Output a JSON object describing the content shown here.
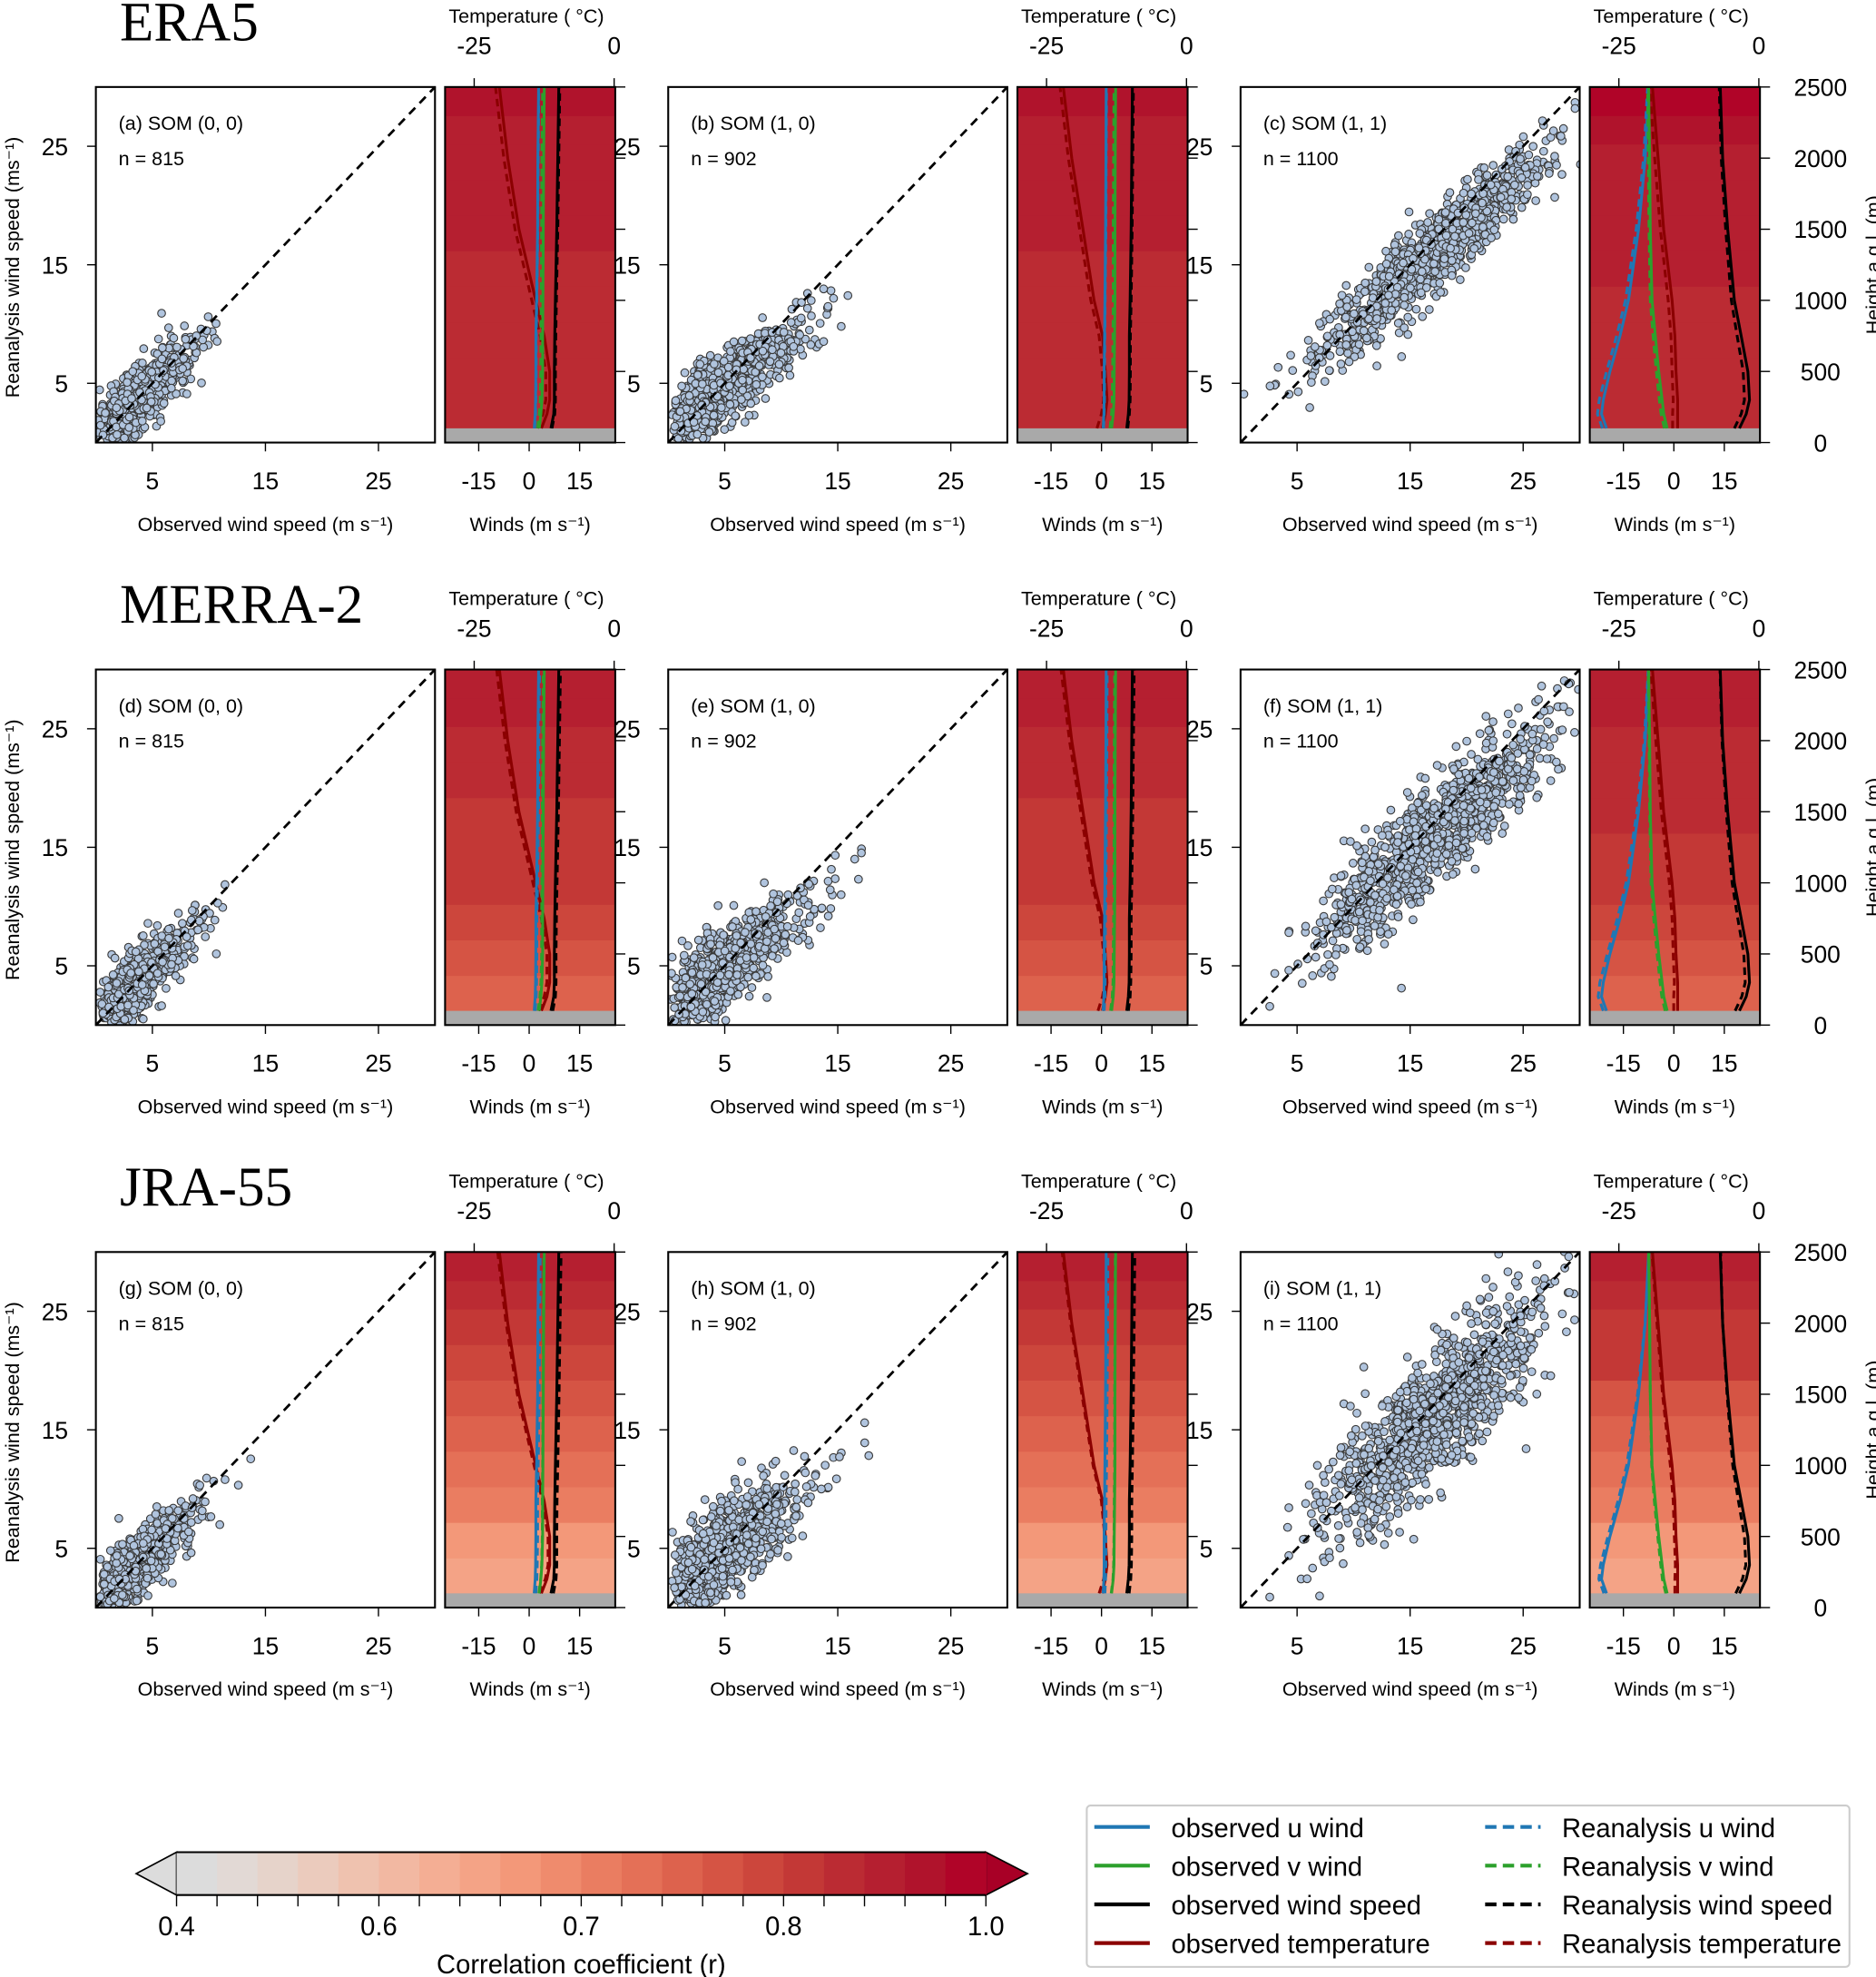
{
  "chart_data": {
    "type": "scatter",
    "rows": [
      {
        "reanalysis": "ERA5"
      },
      {
        "reanalysis": "MERRA-2"
      },
      {
        "reanalysis": "JRA-55"
      }
    ],
    "scatter_axes": {
      "xlabel": "Observed wind speed (m s⁻¹)",
      "ylabel": "Reanalysis wind speed (ms⁻¹)",
      "xlim": [
        0,
        30
      ],
      "ylim": [
        0,
        30
      ],
      "xticks": [
        5,
        15,
        25
      ],
      "yticks": [
        5,
        15,
        25
      ],
      "reference_line": "1:1 dashed"
    },
    "profile_axes": {
      "xlabel": "Winds (m s⁻¹)",
      "top_label": "Temperature ( °C)",
      "wind_lim": [
        -25,
        25.6
      ],
      "wind_ticks": [
        -15,
        0,
        15
      ],
      "temp_lim": [
        -30.2,
        0.2
      ],
      "temp_ticks": [
        -25,
        0
      ],
      "height_label": "Height a.g.l. (m)",
      "height_lim": [
        0,
        2500
      ],
      "height_ticks": [
        0,
        500,
        1000,
        1500,
        2000,
        2500
      ],
      "ground_below_m": 100,
      "ground_color": "#a9a9a9"
    },
    "panels": [
      {
        "label": "(a) SOM (0, 0)",
        "n": "n = 815",
        "row": 0,
        "col": 0
      },
      {
        "label": "(b) SOM (1, 0)",
        "n": "n = 902",
        "row": 0,
        "col": 1
      },
      {
        "label": "(c) SOM (1, 1)",
        "n": "n = 1100",
        "row": 0,
        "col": 2
      },
      {
        "label": "(d) SOM (0, 0)",
        "n": "n = 815",
        "row": 1,
        "col": 0
      },
      {
        "label": "(e) SOM (1, 0)",
        "n": "n = 902",
        "row": 1,
        "col": 1
      },
      {
        "label": "(f) SOM (1, 1)",
        "n": "n = 1100",
        "row": 1,
        "col": 2
      },
      {
        "label": "(g) SOM (0, 0)",
        "n": "n = 815",
        "row": 2,
        "col": 0
      },
      {
        "label": "(h) SOM (1, 0)",
        "n": "n = 902",
        "row": 2,
        "col": 1
      },
      {
        "label": "(i) SOM (1, 1)",
        "n": "n = 1100",
        "row": 2,
        "col": 2
      }
    ],
    "profile_heights_m": [
      100,
      200,
      300,
      500,
      750,
      1000,
      1500,
      2000,
      2500
    ],
    "profiles_by_som": [
      {
        "obs_u": [
          1.5,
          1.8,
          1.9,
          2.0,
          2.0,
          2.2,
          2.5,
          2.6,
          2.8
        ],
        "rea_u": [
          1.8,
          2.1,
          2.2,
          2.3,
          2.3,
          2.5,
          2.8,
          2.9,
          3.1
        ],
        "obs_v": [
          3.0,
          3.5,
          3.8,
          4.0,
          4.0,
          4.1,
          4.2,
          4.3,
          4.5
        ],
        "rea_v": [
          2.7,
          3.2,
          3.5,
          3.7,
          3.7,
          3.8,
          3.9,
          4.0,
          4.2
        ],
        "obs_ws": [
          6.5,
          7.3,
          7.5,
          7.5,
          7.6,
          7.8,
          8.2,
          8.5,
          8.8
        ],
        "rea_ws": [
          7.0,
          7.8,
          8.0,
          8.0,
          8.1,
          8.3,
          8.7,
          9.0,
          9.3
        ],
        "obs_t": [
          -13.0,
          -12.0,
          -11.5,
          -11.5,
          -12.5,
          -14.0,
          -17.0,
          -19.0,
          -20.5
        ],
        "rea_t": [
          -13.5,
          -12.5,
          -12.0,
          -12.0,
          -13.0,
          -14.5,
          -17.5,
          -19.5,
          -21.0
        ]
      },
      {
        "obs_u": [
          0.5,
          0.7,
          0.8,
          0.8,
          0.9,
          1.0,
          1.2,
          1.3,
          1.4
        ],
        "rea_u": [
          0.8,
          1.0,
          1.1,
          1.1,
          1.2,
          1.3,
          1.5,
          1.6,
          1.7
        ],
        "obs_v": [
          3.0,
          3.5,
          3.7,
          3.8,
          3.9,
          4.0,
          4.0,
          4.1,
          4.2
        ],
        "rea_v": [
          2.7,
          3.2,
          3.4,
          3.5,
          3.6,
          3.7,
          3.7,
          3.8,
          3.9
        ],
        "obs_ws": [
          7.5,
          8.0,
          8.2,
          8.3,
          8.3,
          8.5,
          8.8,
          9.0,
          9.2
        ],
        "rea_ws": [
          8.0,
          8.5,
          8.7,
          8.8,
          8.8,
          9.0,
          9.3,
          9.5,
          9.7
        ],
        "obs_t": [
          -15.0,
          -14.5,
          -14.2,
          -14.5,
          -15.0,
          -16.5,
          -18.5,
          -20.5,
          -22.0
        ],
        "rea_t": [
          -15.8,
          -15.0,
          -14.6,
          -14.8,
          -15.4,
          -16.9,
          -18.9,
          -20.9,
          -22.4
        ]
      },
      {
        "obs_u": [
          -20.0,
          -21.5,
          -21.0,
          -19.0,
          -16.0,
          -13.5,
          -10.5,
          -8.5,
          -7.5
        ],
        "rea_u": [
          -21.0,
          -22.5,
          -22.0,
          -19.8,
          -16.8,
          -14.2,
          -11.0,
          -8.8,
          -7.6
        ],
        "obs_v": [
          -2.0,
          -3.0,
          -3.5,
          -4.5,
          -5.5,
          -6.5,
          -7.0,
          -7.2,
          -7.5
        ],
        "rea_v": [
          -2.6,
          -3.6,
          -4.1,
          -5.0,
          -6.0,
          -6.8,
          -7.2,
          -7.4,
          -7.6
        ],
        "obs_ws": [
          19.5,
          21.5,
          22.5,
          22.0,
          20.0,
          18.0,
          16.0,
          14.5,
          13.8
        ],
        "rea_ws": [
          18.2,
          20.2,
          21.2,
          20.8,
          19.0,
          17.3,
          15.6,
          14.3,
          13.7
        ],
        "obs_t": [
          -14.5,
          -14.5,
          -14.5,
          -14.8,
          -15.0,
          -15.5,
          -17.0,
          -18.0,
          -19.0
        ],
        "rea_t": [
          -15.2,
          -15.2,
          -15.1,
          -15.3,
          -15.5,
          -16.0,
          -17.4,
          -18.4,
          -19.3
        ]
      }
    ],
    "background_band_edges_m": [
      100,
      350,
      600,
      850,
      1100,
      1350,
      1600,
      1850,
      2100,
      2300,
      2500
    ],
    "background_correlation_by_row": [
      [
        0.84,
        0.85,
        0.85,
        0.86,
        0.87,
        0.88,
        0.88,
        0.89,
        0.91,
        0.95
      ],
      [
        0.74,
        0.76,
        0.78,
        0.8,
        0.81,
        0.83,
        0.85,
        0.86,
        0.88,
        0.9
      ],
      [
        0.64,
        0.66,
        0.7,
        0.72,
        0.74,
        0.76,
        0.79,
        0.82,
        0.85,
        0.88
      ]
    ],
    "series_styles": {
      "u": "#1f77b4",
      "v": "#2ca02c",
      "ws": "#000000",
      "t": "#8b0000",
      "scatter_fill": "#b0c4de",
      "scatter_edge": "#3a3a3a"
    }
  },
  "colorbar": {
    "label": "Correlation coefficient (r)",
    "tick_labels": [
      "0.4",
      "0.6",
      "0.7",
      "0.8",
      "1.0"
    ],
    "boundaries": [
      0.4,
      0.44,
      0.48,
      0.52,
      0.56,
      0.6,
      0.62,
      0.64,
      0.66,
      0.68,
      0.7,
      0.72,
      0.74,
      0.76,
      0.78,
      0.8,
      0.84,
      0.88,
      0.92,
      0.96,
      1.0
    ],
    "colors": [
      "#dcdcdc",
      "#e2d9d5",
      "#e6d3ca",
      "#ebcbbd",
      "#efc2af",
      "#f2b8a2",
      "#f4ae94",
      "#f4a386",
      "#f39879",
      "#ef8b6d",
      "#ea7d61",
      "#e47057",
      "#dd624d",
      "#d55444",
      "#cc463c",
      "#c33836",
      "#bb2b33",
      "#b51f30",
      "#b0132c",
      "#b00428"
    ],
    "under_color": "#dcdcdc",
    "over_color": "#a80026"
  },
  "legend": {
    "items": [
      {
        "label": "observed u wind",
        "color": "#1f77b4",
        "dashed": false
      },
      {
        "label": "observed v wind",
        "color": "#2ca02c",
        "dashed": false
      },
      {
        "label": "observed wind speed",
        "color": "#000000",
        "dashed": false
      },
      {
        "label": "observed temperature",
        "color": "#8b0000",
        "dashed": false
      },
      {
        "label": "Reanalysis u wind",
        "color": "#1f77b4",
        "dashed": true
      },
      {
        "label": "Reanalysis v wind",
        "color": "#2ca02c",
        "dashed": true
      },
      {
        "label": "Reanalysis wind speed",
        "color": "#000000",
        "dashed": true
      },
      {
        "label": "Reanalysis temperature",
        "color": "#8b0000",
        "dashed": true
      }
    ]
  }
}
